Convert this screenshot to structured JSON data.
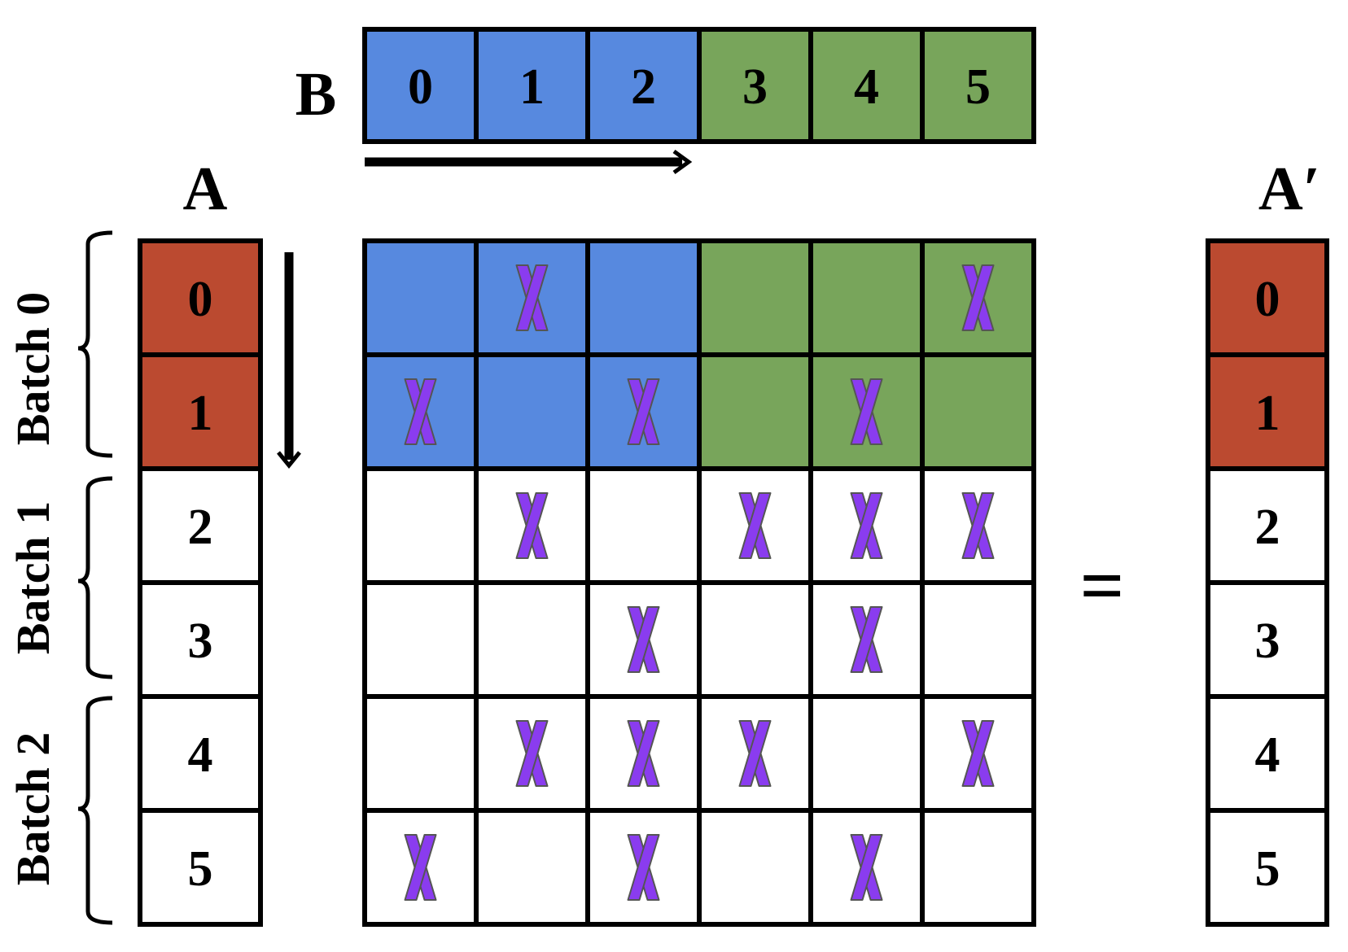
{
  "labels": {
    "vector_a": "A",
    "vector_b": "B",
    "vector_result": "A′",
    "equals": "="
  },
  "batches": [
    {
      "label": "Batch 0",
      "rows": [
        0,
        1
      ]
    },
    {
      "label": "Batch 1",
      "rows": [
        2,
        3
      ]
    },
    {
      "label": "Batch 2",
      "rows": [
        4,
        5
      ]
    }
  ],
  "vector_b": {
    "entries": [
      "0",
      "1",
      "2",
      "3",
      "4",
      "5"
    ],
    "colors": [
      "#5789df",
      "#5789df",
      "#5789df",
      "#78a55b",
      "#78a55b",
      "#78a55b"
    ]
  },
  "vector_a": {
    "entries": [
      "0",
      "1",
      "2",
      "3",
      "4",
      "5"
    ],
    "colors": [
      "#bb4a30",
      "#bb4a30",
      "#ffffff",
      "#ffffff",
      "#ffffff",
      "#ffffff"
    ]
  },
  "vector_result": {
    "entries": [
      "0",
      "1",
      "2",
      "3",
      "4",
      "5"
    ],
    "colors": [
      "#bb4a30",
      "#bb4a30",
      "#ffffff",
      "#ffffff",
      "#ffffff",
      "#ffffff"
    ]
  },
  "matrix": {
    "row_colors": [
      [
        "#5789df",
        "#5789df",
        "#5789df",
        "#78a55b",
        "#78a55b",
        "#78a55b"
      ],
      [
        "#5789df",
        "#5789df",
        "#5789df",
        "#78a55b",
        "#78a55b",
        "#78a55b"
      ],
      [
        "#ffffff",
        "#ffffff",
        "#ffffff",
        "#ffffff",
        "#ffffff",
        "#ffffff"
      ],
      [
        "#ffffff",
        "#ffffff",
        "#ffffff",
        "#ffffff",
        "#ffffff",
        "#ffffff"
      ],
      [
        "#ffffff",
        "#ffffff",
        "#ffffff",
        "#ffffff",
        "#ffffff",
        "#ffffff"
      ],
      [
        "#ffffff",
        "#ffffff",
        "#ffffff",
        "#ffffff",
        "#ffffff",
        "#ffffff"
      ]
    ],
    "nonzeros": [
      [
        0,
        1,
        0,
        0,
        0,
        1
      ],
      [
        1,
        0,
        1,
        0,
        1,
        0
      ],
      [
        0,
        1,
        0,
        1,
        1,
        1
      ],
      [
        0,
        0,
        1,
        0,
        1,
        0
      ],
      [
        0,
        1,
        1,
        1,
        0,
        1
      ],
      [
        1,
        0,
        1,
        0,
        1,
        0
      ]
    ],
    "nonzero_color": "#8a3cef",
    "nonzero_symbol": "x-mark-icon"
  },
  "colors": {
    "grid_line": "#000000",
    "blue": "#5789df",
    "green": "#78a55b",
    "red": "#bb4a30",
    "x_fill": "#8a3cef",
    "x_stroke": "#555555"
  }
}
